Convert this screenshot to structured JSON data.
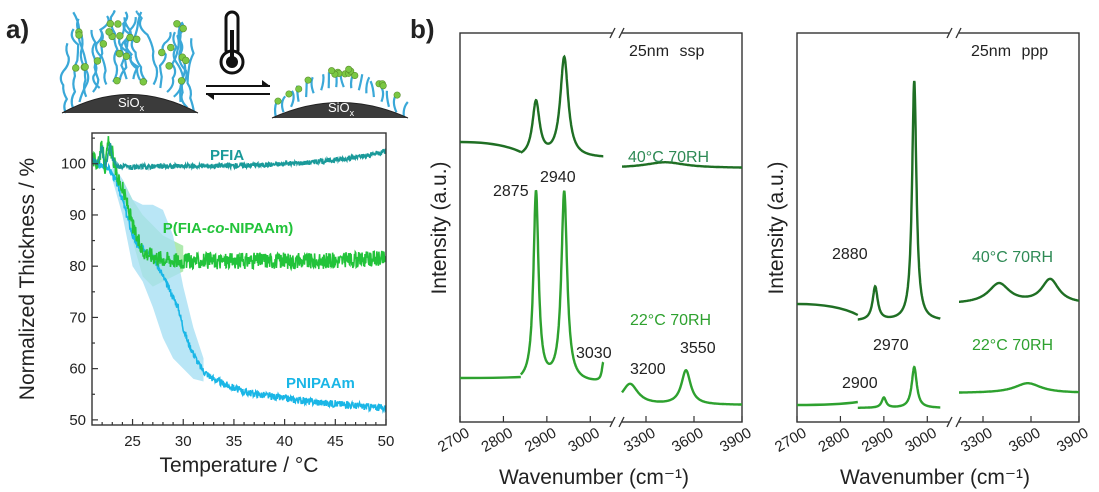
{
  "panel_a": {
    "label": "a)",
    "schematic": {
      "left_substrate": "SiO",
      "right_substrate": "SiO",
      "substrate_subscript": "x",
      "icon": "thermometer-icon",
      "arrow": "equilibrium-arrows-icon"
    }
  },
  "panel_b": {
    "label": "b)"
  },
  "colors": {
    "teal": "#1a9a9a",
    "green": "#22c33a",
    "green_light": "#9be59b",
    "cyan": "#1ab6e6",
    "cyan_light": "#a8e0f4",
    "dark_green": "#1f6f24",
    "mid_green": "#2ea12f",
    "label_dark": "#2e8a55",
    "label_mid": "#2ea12f",
    "brush_blue": "#3aa8d8",
    "bead_green": "#7bc843"
  },
  "chart_data": [
    {
      "type": "line",
      "xlabel": "Temperature / °C",
      "ylabel": "Normalized Thickness / %",
      "xlim": [
        21,
        50
      ],
      "ylim": [
        49,
        106
      ],
      "xticks": [
        "25",
        "30",
        "35",
        "40",
        "45",
        "50"
      ],
      "yticks": [
        "50",
        "60",
        "70",
        "80",
        "90",
        "100"
      ],
      "grid": false,
      "series": [
        {
          "name": "PFIA",
          "color": "teal",
          "x": [
            21,
            21.6,
            22,
            22.3,
            22.8,
            23,
            23.5,
            24,
            25,
            26,
            28,
            30,
            32,
            34,
            36,
            38,
            40,
            42,
            44,
            46,
            48,
            50
          ],
          "y": [
            101,
            100,
            103.5,
            99,
            104,
            101,
            99.5,
            99.5,
            99.2,
            99.4,
            99.5,
            99.5,
            99.6,
            99.6,
            99.7,
            99.8,
            100,
            100.2,
            100.5,
            101,
            101.5,
            102.5
          ]
        },
        {
          "name": "P(FIA-co-NIPAAm)",
          "color": "green",
          "x": [
            21,
            21.5,
            22,
            22.3,
            22.6,
            23,
            23.3,
            23.6,
            24,
            24.5,
            25,
            25.5,
            26,
            27,
            28,
            30,
            32,
            35,
            38,
            41,
            44,
            47,
            50
          ],
          "y": [
            101,
            100,
            103.5,
            99,
            104,
            102,
            99,
            97,
            95,
            92,
            88,
            85,
            83,
            82,
            81.5,
            81,
            81,
            81,
            81.2,
            81,
            81,
            81.2,
            81.5
          ]
        },
        {
          "name": "PNIPAAm",
          "color": "cyan",
          "x": [
            21,
            21.5,
            22,
            22.5,
            23,
            23.5,
            24,
            24.5,
            25,
            25.5,
            26,
            26.5,
            27,
            27.5,
            28,
            28.5,
            29,
            29.5,
            30,
            30.5,
            31,
            31.5,
            32,
            33,
            34,
            36,
            38,
            40,
            42,
            44,
            46,
            48,
            50
          ],
          "y": [
            101,
            100,
            99.5,
            99.5,
            98,
            96,
            93,
            89.5,
            86,
            84,
            83.5,
            83,
            82,
            80,
            78,
            76,
            74,
            72,
            68,
            65,
            63,
            61,
            59.5,
            58,
            57,
            55.5,
            54.8,
            54.2,
            53.7,
            53.3,
            53,
            52.6,
            52.3
          ]
        }
      ],
      "bands": [
        {
          "series": "P(FIA-co-NIPAAm)",
          "color": "green_light",
          "x": [
            24,
            25,
            26,
            27,
            28,
            29,
            30
          ],
          "upper": [
            97,
            93,
            90,
            88,
            86,
            85,
            84
          ],
          "lower": [
            93,
            85,
            78,
            76,
            77,
            78,
            79
          ]
        },
        {
          "series": "PNIPAAm",
          "color": "cyan_light",
          "x": [
            23,
            24,
            25,
            26,
            27,
            28,
            29,
            30,
            31,
            32
          ],
          "upper": [
            100,
            97,
            93,
            92,
            92,
            91,
            86,
            76,
            68,
            62
          ],
          "lower": [
            97,
            90,
            80,
            77,
            72,
            66,
            62,
            60,
            58,
            57.5
          ]
        }
      ]
    },
    {
      "type": "line",
      "xlabel": "Wavenumber (cm⁻¹)",
      "ylabel": "Intensity (a.u.)",
      "xticks": [
        "2700",
        "2800",
        "2900",
        "3000",
        "3300",
        "3600",
        "3900"
      ],
      "title": "25nm ssp",
      "series": [
        {
          "name": "40°C 70RH",
          "color": "dark_green",
          "peaks": [
            {
              "x": 2875,
              "h": 0.55,
              "w": 20
            },
            {
              "x": 2940,
              "h": 1.0,
              "w": 22
            },
            {
              "x": 3420,
              "h": 0.12,
              "w": 300
            }
          ]
        },
        {
          "name": "22°C 70RH",
          "color": "mid_green",
          "peaks": [
            {
              "x": 2875,
              "h": 1.0,
              "w": 14
            },
            {
              "x": 2940,
              "h": 1.0,
              "w": 16
            },
            {
              "x": 3030,
              "h": 0.1,
              "w": 8
            },
            {
              "x": 3200,
              "h": 0.22,
              "w": 120
            },
            {
              "x": 3550,
              "h": 0.36,
              "w": 70
            }
          ]
        }
      ],
      "annotations": [
        "2875",
        "2940",
        "3030",
        "3200",
        "3550"
      ]
    },
    {
      "type": "line",
      "xlabel": "Wavenumber (cm⁻¹)",
      "ylabel": "Intensity (a.u.)",
      "xticks": [
        "2700",
        "2800",
        "2900",
        "3000",
        "3300",
        "3600",
        "3900"
      ],
      "title": "25nm ppp",
      "series": [
        {
          "name": "40°C 70RH",
          "color": "dark_green",
          "peaks": [
            {
              "x": 2880,
              "h": 0.14,
              "w": 14
            },
            {
              "x": 2970,
              "h": 1.0,
              "w": 12
            },
            {
              "x": 3400,
              "h": 0.2,
              "w": 160
            },
            {
              "x": 3720,
              "h": 0.24,
              "w": 130
            }
          ]
        },
        {
          "name": "22°C 70RH",
          "color": "mid_green",
          "peaks": [
            {
              "x": 2900,
              "h": 0.06,
              "w": 12
            },
            {
              "x": 2970,
              "h": 0.24,
              "w": 14
            },
            {
              "x": 3580,
              "h": 0.14,
              "w": 200
            }
          ]
        }
      ],
      "annotations": [
        "2880",
        "2970",
        "2900"
      ]
    }
  ]
}
